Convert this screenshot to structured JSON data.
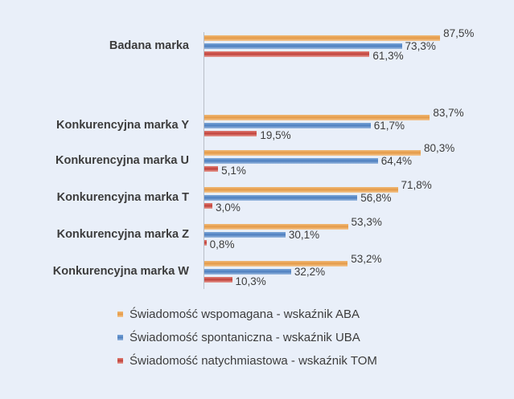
{
  "chart_data": {
    "type": "bar",
    "orientation": "horizontal",
    "title": "",
    "xlabel": "",
    "ylabel": "",
    "categories": [
      "Badana marka",
      "Konkurencyjna marka Y",
      "Konkurencyjna marka U",
      "Konkurencyjna marka T",
      "Konkurencyjna marka Z",
      "Konkurencyjna marka W"
    ],
    "series": [
      {
        "name": "Świadomość wspomagana - wskaźnik ABA",
        "color": "#e49a48",
        "values": [
          87.5,
          83.7,
          80.3,
          71.8,
          53.3,
          53.2
        ],
        "labels": [
          "87,5%",
          "83,7%",
          "80,3%",
          "71,8%",
          "53,3%",
          "53,2%"
        ]
      },
      {
        "name": "Świadomość spontaniczna - wskaźnik UBA",
        "color": "#4d7fbf",
        "values": [
          73.3,
          61.7,
          64.4,
          56.8,
          30.1,
          32.2
        ],
        "labels": [
          "73,3%",
          "61,7%",
          "64,4%",
          "56,8%",
          "30,1%",
          "32,2%"
        ]
      },
      {
        "name": "Świadomość natychmiastowa - wskaźnik TOM",
        "color": "#c0413a",
        "values": [
          61.3,
          19.5,
          5.1,
          3.0,
          0.8,
          10.3
        ],
        "labels": [
          "61,3%",
          "19,5%",
          "5,1%",
          "3,0%",
          "0,8%",
          "10,3%"
        ]
      }
    ],
    "xlim": [
      0,
      100
    ],
    "grid": false,
    "legend_position": "bottom"
  }
}
